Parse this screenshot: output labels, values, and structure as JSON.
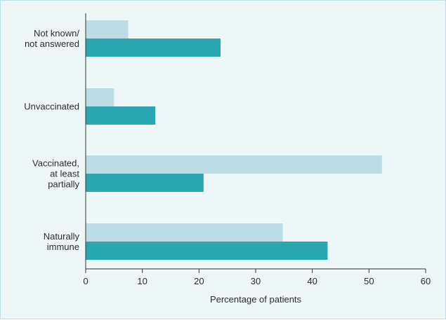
{
  "chart_data": {
    "type": "bar",
    "orientation": "horizontal",
    "title": "",
    "xlabel": "Percentage of patients",
    "ylabel": "",
    "xlim": [
      0,
      60
    ],
    "xticks": [
      0,
      10,
      20,
      30,
      40,
      50,
      60
    ],
    "grid": false,
    "legend": "none",
    "categories": [
      [
        "Not known/",
        "not answered"
      ],
      [
        "Unvaccinated"
      ],
      [
        "Vaccinated,",
        "at least",
        "partially"
      ],
      [
        "Naturally",
        "immune"
      ]
    ],
    "series": [
      {
        "color": "#bcdde3",
        "values": [
          7.5,
          5,
          52.3,
          34.8
        ]
      },
      {
        "color": "#2aa6b1",
        "values": [
          23.8,
          12.3,
          20.8,
          42.7
        ]
      }
    ]
  }
}
